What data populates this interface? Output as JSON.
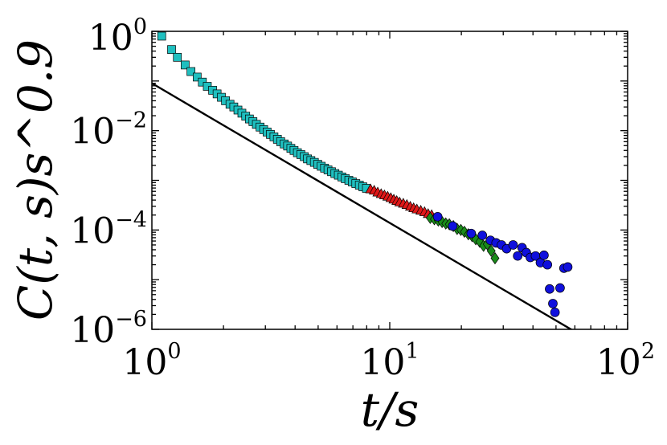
{
  "chart_data": {
    "type": "scatter",
    "title": "",
    "xlabel": "t/s",
    "ylabel": "C(t, s)s^0.9",
    "x_scale": "log",
    "y_scale": "log",
    "xlim": [
      1,
      100
    ],
    "ylim": [
      1e-06,
      1
    ],
    "grid": false,
    "x_ticks": [
      {
        "base": "10",
        "exp": "0",
        "value": 1
      },
      {
        "base": "10",
        "exp": "1",
        "value": 10
      },
      {
        "base": "10",
        "exp": "2",
        "value": 100
      }
    ],
    "y_ticks": [
      {
        "base": "10",
        "exp": "0",
        "value": 1
      },
      {
        "base": "10",
        "exp": "−2",
        "value": 0.01
      },
      {
        "base": "10",
        "exp": "−4",
        "value": 0.0001
      },
      {
        "base": "10",
        "exp": "−6",
        "value": 1e-06
      }
    ],
    "reference_line": {
      "color": "#000000",
      "points": [
        [
          1,
          0.09
        ],
        [
          60,
          9e-07
        ]
      ]
    },
    "series": [
      {
        "marker": "square",
        "color": "#1fbfbf",
        "points": [
          [
            1.1,
            0.8
          ],
          [
            1.21,
            0.43
          ],
          [
            1.28,
            0.3
          ],
          [
            1.38,
            0.21
          ],
          [
            1.46,
            0.155
          ],
          [
            1.55,
            0.12
          ],
          [
            1.63,
            0.095
          ],
          [
            1.71,
            0.078
          ],
          [
            1.8,
            0.065
          ],
          [
            1.88,
            0.055
          ],
          [
            1.96,
            0.047
          ],
          [
            2.04,
            0.04
          ],
          [
            2.13,
            0.034
          ],
          [
            2.21,
            0.03
          ],
          [
            2.3,
            0.026
          ],
          [
            2.39,
            0.0225
          ],
          [
            2.48,
            0.0196
          ],
          [
            2.57,
            0.0172
          ],
          [
            2.66,
            0.0152
          ],
          [
            2.75,
            0.0134
          ],
          [
            2.85,
            0.0118
          ],
          [
            2.95,
            0.0105
          ],
          [
            3.05,
            0.0094
          ],
          [
            3.15,
            0.0084
          ],
          [
            3.26,
            0.0075
          ],
          [
            3.37,
            0.0067
          ],
          [
            3.48,
            0.006
          ],
          [
            3.6,
            0.0054
          ],
          [
            3.72,
            0.0049
          ],
          [
            3.84,
            0.0044
          ],
          [
            3.96,
            0.004
          ],
          [
            4.09,
            0.0036
          ],
          [
            4.23,
            0.0033
          ],
          [
            4.37,
            0.003
          ],
          [
            4.51,
            0.0027
          ],
          [
            4.66,
            0.0025
          ],
          [
            4.82,
            0.0023
          ],
          [
            4.98,
            0.0021
          ],
          [
            5.15,
            0.00192
          ],
          [
            5.32,
            0.00176
          ],
          [
            5.5,
            0.00162
          ],
          [
            5.69,
            0.00149
          ],
          [
            5.88,
            0.00137
          ],
          [
            6.08,
            0.00127
          ],
          [
            6.29,
            0.00117
          ],
          [
            6.5,
            0.00108
          ],
          [
            6.73,
            0.001
          ],
          [
            6.96,
            0.00093
          ],
          [
            7.2,
            0.00086
          ],
          [
            7.45,
            0.0008
          ],
          [
            7.71,
            0.00074
          ],
          [
            7.98,
            0.00069
          ]
        ]
      },
      {
        "marker": "triangle",
        "color": "#e01818",
        "points": [
          [
            8.3,
            0.00066
          ],
          [
            8.6,
            0.00062
          ],
          [
            8.9,
            0.00057
          ],
          [
            9.2,
            0.00053
          ],
          [
            9.5,
            0.0005
          ],
          [
            9.8,
            0.00047
          ],
          [
            10.1,
            0.00044
          ],
          [
            10.4,
            0.00041
          ],
          [
            10.7,
            0.000385
          ],
          [
            11.0,
            0.00036
          ],
          [
            11.4,
            0.00034
          ],
          [
            11.8,
            0.00032
          ],
          [
            12.2,
            0.000295
          ],
          [
            12.6,
            0.000275
          ],
          [
            13.0,
            0.00026
          ],
          [
            13.5,
            0.000245
          ],
          [
            14.0,
            0.00023
          ],
          [
            14.5,
            0.00021
          ],
          [
            15.0,
            0.0002
          ]
        ]
      },
      {
        "marker": "diamond",
        "color": "#1a8c1a",
        "points": [
          [
            14.8,
            0.000175
          ],
          [
            15.4,
            0.000165
          ],
          [
            16.0,
            0.000155
          ],
          [
            16.6,
            0.000145
          ],
          [
            17.2,
            0.000135
          ],
          [
            17.8,
            0.00013
          ],
          [
            18.5,
            0.00012
          ],
          [
            19.2,
            0.000105
          ],
          [
            19.9,
            0.0001
          ],
          [
            20.6,
            9.2e-05
          ],
          [
            21.4,
            8.2e-05
          ],
          [
            22.2,
            7.5e-05
          ],
          [
            23.0,
            6.5e-05
          ],
          [
            23.9,
            5.8e-05
          ],
          [
            24.8,
            4.8e-05
          ],
          [
            25.7,
            5.2e-05
          ],
          [
            26.7,
            3.8e-05
          ],
          [
            27.7,
            2.7e-05
          ]
        ]
      },
      {
        "marker": "circle",
        "color": "#1010dd",
        "points": [
          [
            15.9,
            0.000185
          ],
          [
            18.4,
            0.00012
          ],
          [
            22.0,
            8.5e-05
          ],
          [
            24.5,
            7.8e-05
          ],
          [
            26.5,
            6.2e-05
          ],
          [
            28.0,
            5.5e-05
          ],
          [
            29.5,
            5e-05
          ],
          [
            31.0,
            4.2e-05
          ],
          [
            33.0,
            5e-05
          ],
          [
            34.5,
            3e-05
          ],
          [
            36.0,
            4.4e-05
          ],
          [
            37.5,
            3.5e-05
          ],
          [
            39.0,
            2.8e-05
          ],
          [
            41.0,
            3e-05
          ],
          [
            43.0,
            2.2e-05
          ],
          [
            44.5,
            3.1e-05
          ],
          [
            46.0,
            2e-05
          ],
          [
            47.0,
            6.5e-06
          ],
          [
            48.5,
            3.3e-06
          ],
          [
            49.5,
            2.2e-06
          ],
          [
            52.0,
            6.8e-06
          ],
          [
            54.0,
            1.7e-05
          ],
          [
            56.0,
            1.8e-05
          ]
        ]
      }
    ]
  }
}
